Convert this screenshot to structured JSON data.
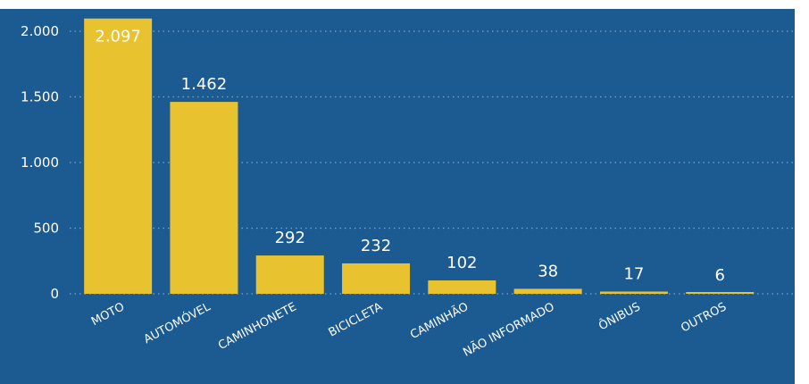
{
  "colors": {
    "panel_background": "#1c5a92",
    "bar": "#e8c22f",
    "text": "#ffffff",
    "gridline": "#7fa3c6"
  },
  "chart_data": {
    "type": "bar",
    "categories": [
      "MOTO",
      "AUTOMÓVEL",
      "CAMINHONETE",
      "BICICLETA",
      "CAMINHÃO",
      "NÃO INFORMADO",
      "ÔNIBUS",
      "OUTROS"
    ],
    "values": [
      2097,
      1462,
      292,
      232,
      102,
      38,
      17,
      6
    ],
    "value_labels": [
      "2.097",
      "1.462",
      "292",
      "232",
      "102",
      "38",
      "17",
      "6"
    ],
    "ylim": [
      0,
      2000
    ],
    "y_ticks": [
      {
        "value": 0,
        "label": "0"
      },
      {
        "value": 500,
        "label": "500"
      },
      {
        "value": 1000,
        "label": "1.000"
      },
      {
        "value": 1500,
        "label": "1.500"
      },
      {
        "value": 2000,
        "label": "2.000"
      }
    ],
    "grid": true,
    "legend": "none"
  }
}
